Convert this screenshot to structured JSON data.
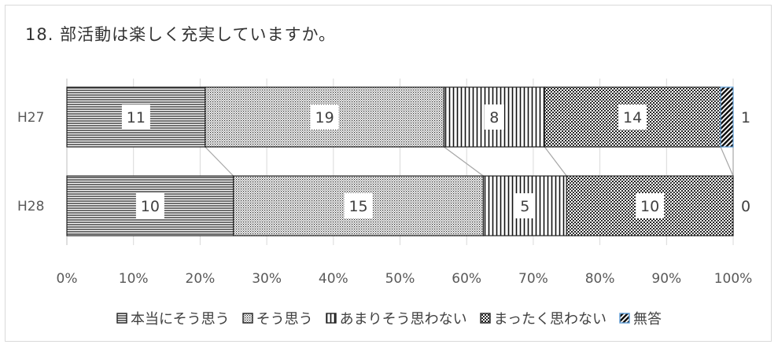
{
  "chart_data": {
    "type": "bar",
    "orientation": "horizontal",
    "stacked": "percent",
    "title": "18. 部活動は楽しく充実していますか。",
    "categories": [
      "H27",
      "H28"
    ],
    "series": [
      {
        "name": "本当にそう思う",
        "values": [
          11,
          10
        ],
        "pattern": "horizontal-lines"
      },
      {
        "name": "そう思う",
        "values": [
          19,
          15
        ],
        "pattern": "dots"
      },
      {
        "name": "あまりそう思わない",
        "values": [
          8,
          5
        ],
        "pattern": "vertical-lines"
      },
      {
        "name": "まったく思わない",
        "values": [
          14,
          10
        ],
        "pattern": "dense-checker"
      },
      {
        "name": "無答",
        "values": [
          1,
          0
        ],
        "pattern": "diagonal",
        "color": "#5b9bd5"
      }
    ],
    "xticks": [
      "0%",
      "10%",
      "20%",
      "30%",
      "40%",
      "50%",
      "60%",
      "70%",
      "80%",
      "90%",
      "100%"
    ],
    "xlim": [
      0,
      1
    ],
    "series_lines": true,
    "legend_position": "bottom"
  }
}
